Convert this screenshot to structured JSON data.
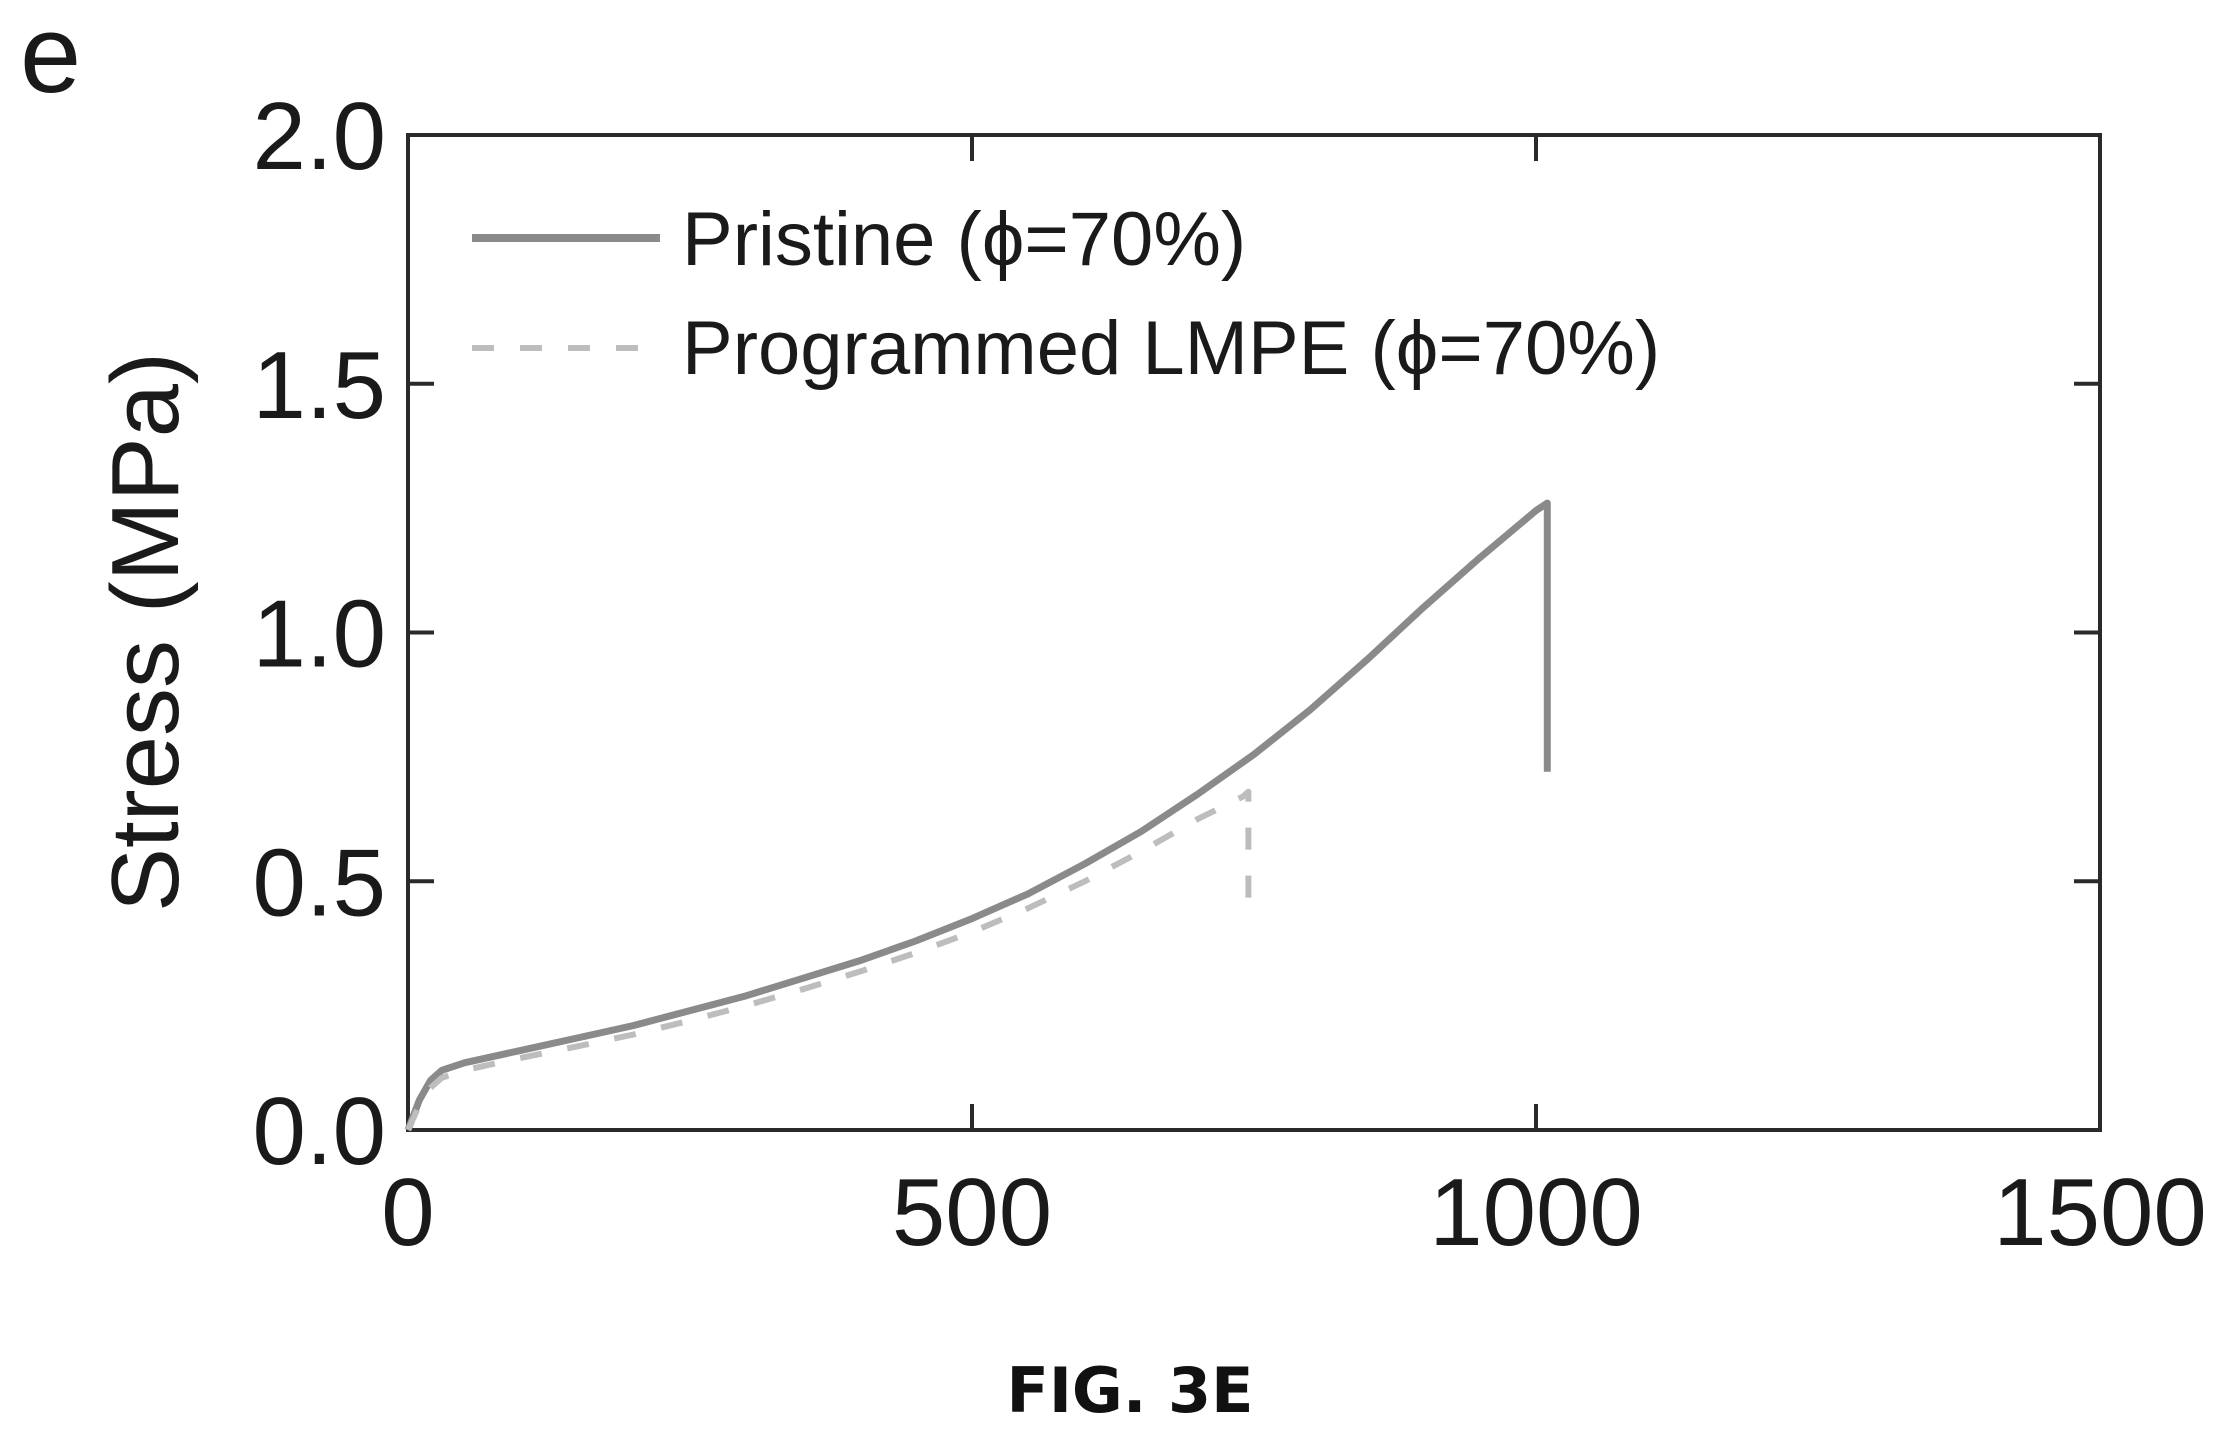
{
  "panel_label": "e",
  "caption": "FIG. 3E",
  "chart_data": {
    "type": "line",
    "title": "",
    "xlabel": "",
    "ylabel": "Stress (MPa)",
    "xlim": [
      0,
      1500
    ],
    "ylim": [
      0,
      2.0
    ],
    "x_ticks": [
      "0",
      "500",
      "1000",
      "1500"
    ],
    "y_ticks": [
      "0.0",
      "0.5",
      "1.0",
      "1.5",
      "2.0"
    ],
    "grid": false,
    "legend_position": "top-left",
    "series": [
      {
        "name": "Pristine (ϕ=70%)",
        "style": "solid",
        "color": "#8a8a8a",
        "x": [
          0,
          10,
          20,
          30,
          50,
          100,
          150,
          200,
          250,
          300,
          350,
          400,
          450,
          500,
          550,
          600,
          650,
          700,
          750,
          800,
          850,
          900,
          950,
          1000,
          1010,
          1010
        ],
        "y": [
          0.0,
          0.06,
          0.1,
          0.12,
          0.135,
          0.16,
          0.185,
          0.21,
          0.24,
          0.27,
          0.305,
          0.34,
          0.38,
          0.425,
          0.475,
          0.535,
          0.6,
          0.675,
          0.755,
          0.845,
          0.945,
          1.05,
          1.15,
          1.245,
          1.26,
          0.72
        ]
      },
      {
        "name": "Programmed LMPE (ϕ=70%)",
        "style": "dashed",
        "color": "#bdbdbd",
        "x": [
          0,
          10,
          20,
          30,
          50,
          100,
          150,
          200,
          250,
          300,
          350,
          400,
          450,
          500,
          550,
          600,
          650,
          700,
          740,
          745,
          745
        ],
        "y": [
          0.0,
          0.05,
          0.085,
          0.105,
          0.12,
          0.145,
          0.168,
          0.192,
          0.22,
          0.25,
          0.283,
          0.318,
          0.356,
          0.398,
          0.446,
          0.5,
          0.56,
          0.625,
          0.67,
          0.68,
          0.42
        ]
      }
    ]
  }
}
